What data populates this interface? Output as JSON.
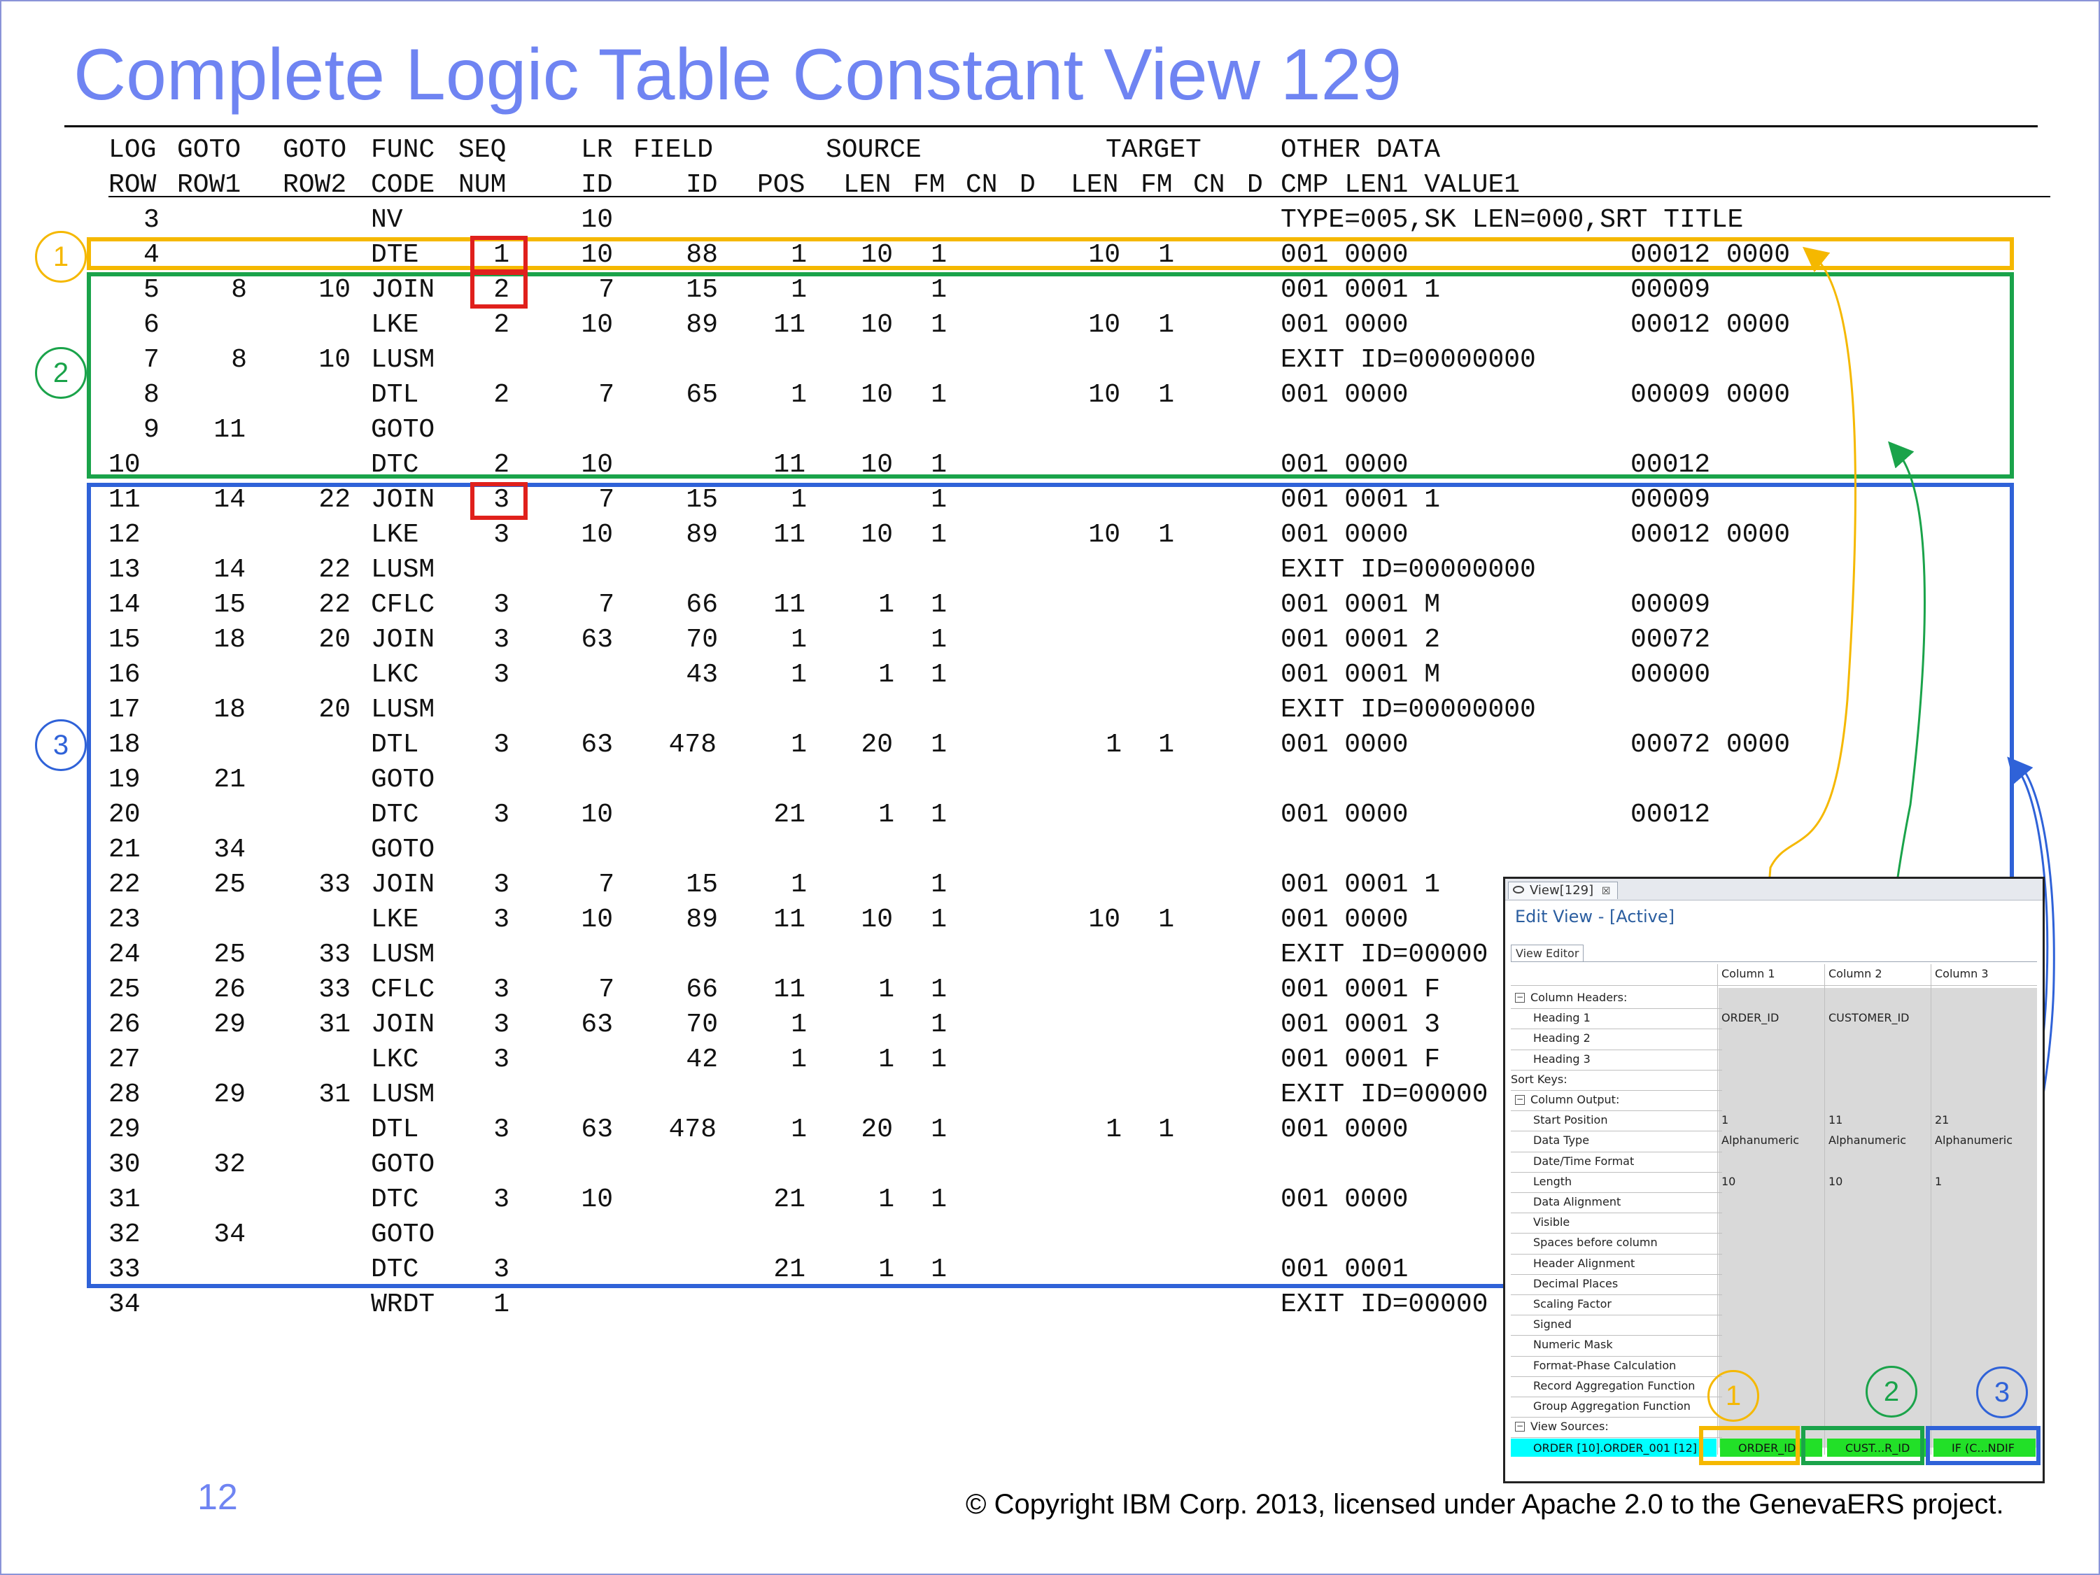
{
  "slide": {
    "title": "Complete Logic Table Constant View 129",
    "page_number": "12",
    "copyright": "© Copyright IBM Corp. 2013, licensed under Apache 2.0 to the GenevaERS project."
  },
  "table": {
    "header_line1": [
      {
        "key": "log",
        "text": "LOG"
      },
      {
        "key": "goto1",
        "text": "GOTO"
      },
      {
        "key": "goto2",
        "text": "GOTO"
      },
      {
        "key": "func",
        "text": "FUNC"
      },
      {
        "key": "seq",
        "text": "SEQ"
      },
      {
        "key": "lr",
        "text": "LR"
      },
      {
        "key": "field",
        "text": "FIELD"
      },
      {
        "key": "source",
        "text": "SOURCE"
      },
      {
        "key": "target",
        "text": "TARGET"
      },
      {
        "key": "other",
        "text": "OTHER DATA"
      }
    ],
    "header_line2": [
      {
        "key": "row",
        "text": "ROW"
      },
      {
        "key": "row1",
        "text": "ROW1"
      },
      {
        "key": "row2",
        "text": "ROW2"
      },
      {
        "key": "code",
        "text": "CODE"
      },
      {
        "key": "num",
        "text": "NUM"
      },
      {
        "key": "lrid",
        "text": "ID"
      },
      {
        "key": "fid",
        "text": "ID"
      },
      {
        "key": "pos",
        "text": "POS"
      },
      {
        "key": "slen",
        "text": "LEN"
      },
      {
        "key": "sfm",
        "text": "FM"
      },
      {
        "key": "scn",
        "text": "CN"
      },
      {
        "key": "sd",
        "text": "D"
      },
      {
        "key": "tlen",
        "text": "LEN"
      },
      {
        "key": "tfm",
        "text": "FM"
      },
      {
        "key": "tcn",
        "text": "CN"
      },
      {
        "key": "td",
        "text": "D"
      },
      {
        "key": "cmp",
        "text": "CMP LEN1 VALUE1"
      }
    ],
    "rows": [
      {
        "row": "3",
        "goto1": "",
        "goto2": "",
        "func": "NV",
        "seq": "",
        "lr": "10",
        "field": "",
        "pos": "",
        "slen": "",
        "sfm": "",
        "tlen": "",
        "tfm": "",
        "other": "TYPE=005,SK LEN=000,SRT TITLE",
        "val": ""
      },
      {
        "row": "4",
        "goto1": "",
        "goto2": "",
        "func": "DTE",
        "seq": "1",
        "lr": "10",
        "field": "88",
        "pos": "1",
        "slen": "10",
        "sfm": "1",
        "tlen": "10",
        "tfm": "1",
        "other": "001 0000",
        "val": "00012 0000"
      },
      {
        "row": "5",
        "goto1": "8",
        "goto2": "10",
        "func": "JOIN",
        "seq": "2",
        "lr": "7",
        "field": "15",
        "pos": "1",
        "slen": "",
        "sfm": "1",
        "tlen": "",
        "tfm": "",
        "other": "001 0001 1",
        "val": "00009"
      },
      {
        "row": "6",
        "goto1": "",
        "goto2": "",
        "func": "LKE",
        "seq": "2",
        "lr": "10",
        "field": "89",
        "pos": "11",
        "slen": "10",
        "sfm": "1",
        "tlen": "10",
        "tfm": "1",
        "other": "001 0000",
        "val": "00012 0000"
      },
      {
        "row": "7",
        "goto1": "8",
        "goto2": "10",
        "func": "LUSM",
        "seq": "",
        "lr": "",
        "field": "",
        "pos": "",
        "slen": "",
        "sfm": "",
        "tlen": "",
        "tfm": "",
        "other": "EXIT ID=00000000",
        "val": ""
      },
      {
        "row": "8",
        "goto1": "",
        "goto2": "",
        "func": "DTL",
        "seq": "2",
        "lr": "7",
        "field": "65",
        "pos": "1",
        "slen": "10",
        "sfm": "1",
        "tlen": "10",
        "tfm": "1",
        "other": "001 0000",
        "val": "00009 0000"
      },
      {
        "row": "9",
        "goto1": "11",
        "goto2": "",
        "func": "GOTO",
        "seq": "",
        "lr": "",
        "field": "",
        "pos": "",
        "slen": "",
        "sfm": "",
        "tlen": "",
        "tfm": "",
        "other": "",
        "val": ""
      },
      {
        "row": "10",
        "goto1": "",
        "goto2": "",
        "func": "DTC",
        "seq": "2",
        "lr": "10",
        "field": "",
        "pos": "11",
        "slen": "10",
        "sfm": "1",
        "tlen": "",
        "tfm": "",
        "other": "001 0000",
        "val": "00012"
      },
      {
        "row": "11",
        "goto1": "14",
        "goto2": "22",
        "func": "JOIN",
        "seq": "3",
        "lr": "7",
        "field": "15",
        "pos": "1",
        "slen": "",
        "sfm": "1",
        "tlen": "",
        "tfm": "",
        "other": "001 0001 1",
        "val": "00009"
      },
      {
        "row": "12",
        "goto1": "",
        "goto2": "",
        "func": "LKE",
        "seq": "3",
        "lr": "10",
        "field": "89",
        "pos": "11",
        "slen": "10",
        "sfm": "1",
        "tlen": "10",
        "tfm": "1",
        "other": "001 0000",
        "val": "00012 0000"
      },
      {
        "row": "13",
        "goto1": "14",
        "goto2": "22",
        "func": "LUSM",
        "seq": "",
        "lr": "",
        "field": "",
        "pos": "",
        "slen": "",
        "sfm": "",
        "tlen": "",
        "tfm": "",
        "other": "EXIT ID=00000000",
        "val": ""
      },
      {
        "row": "14",
        "goto1": "15",
        "goto2": "22",
        "func": "CFLC",
        "seq": "3",
        "lr": "7",
        "field": "66",
        "pos": "11",
        "slen": "1",
        "sfm": "1",
        "tlen": "",
        "tfm": "",
        "other": "001 0001 M",
        "val": "00009"
      },
      {
        "row": "15",
        "goto1": "18",
        "goto2": "20",
        "func": "JOIN",
        "seq": "3",
        "lr": "63",
        "field": "70",
        "pos": "1",
        "slen": "",
        "sfm": "1",
        "tlen": "",
        "tfm": "",
        "other": "001 0001 2",
        "val": "00072"
      },
      {
        "row": "16",
        "goto1": "",
        "goto2": "",
        "func": "LKC",
        "seq": "3",
        "lr": "",
        "field": "43",
        "pos": "1",
        "slen": "1",
        "sfm": "1",
        "tlen": "",
        "tfm": "",
        "other": "001 0001 M",
        "val": "00000"
      },
      {
        "row": "17",
        "goto1": "18",
        "goto2": "20",
        "func": "LUSM",
        "seq": "",
        "lr": "",
        "field": "",
        "pos": "",
        "slen": "",
        "sfm": "",
        "tlen": "",
        "tfm": "",
        "other": "EXIT ID=00000000",
        "val": ""
      },
      {
        "row": "18",
        "goto1": "",
        "goto2": "",
        "func": "DTL",
        "seq": "3",
        "lr": "63",
        "field": "478",
        "pos": "1",
        "slen": "20",
        "sfm": "1",
        "tlen": "1",
        "tfm": "1",
        "other": "001 0000",
        "val": "00072 0000"
      },
      {
        "row": "19",
        "goto1": "21",
        "goto2": "",
        "func": "GOTO",
        "seq": "",
        "lr": "",
        "field": "",
        "pos": "",
        "slen": "",
        "sfm": "",
        "tlen": "",
        "tfm": "",
        "other": "",
        "val": ""
      },
      {
        "row": "20",
        "goto1": "",
        "goto2": "",
        "func": "DTC",
        "seq": "3",
        "lr": "10",
        "field": "",
        "pos": "21",
        "slen": "1",
        "sfm": "1",
        "tlen": "",
        "tfm": "",
        "other": "001 0000",
        "val": "00012"
      },
      {
        "row": "21",
        "goto1": "34",
        "goto2": "",
        "func": "GOTO",
        "seq": "",
        "lr": "",
        "field": "",
        "pos": "",
        "slen": "",
        "sfm": "",
        "tlen": "",
        "tfm": "",
        "other": "",
        "val": ""
      },
      {
        "row": "22",
        "goto1": "25",
        "goto2": "33",
        "func": "JOIN",
        "seq": "3",
        "lr": "7",
        "field": "15",
        "pos": "1",
        "slen": "",
        "sfm": "1",
        "tlen": "",
        "tfm": "",
        "other": "001 0001 1",
        "val": ""
      },
      {
        "row": "23",
        "goto1": "",
        "goto2": "",
        "func": "LKE",
        "seq": "3",
        "lr": "10",
        "field": "89",
        "pos": "11",
        "slen": "10",
        "sfm": "1",
        "tlen": "10",
        "tfm": "1",
        "other": "001 0000",
        "val": ""
      },
      {
        "row": "24",
        "goto1": "25",
        "goto2": "33",
        "func": "LUSM",
        "seq": "",
        "lr": "",
        "field": "",
        "pos": "",
        "slen": "",
        "sfm": "",
        "tlen": "",
        "tfm": "",
        "other": "EXIT ID=00000",
        "val": ""
      },
      {
        "row": "25",
        "goto1": "26",
        "goto2": "33",
        "func": "CFLC",
        "seq": "3",
        "lr": "7",
        "field": "66",
        "pos": "11",
        "slen": "1",
        "sfm": "1",
        "tlen": "",
        "tfm": "",
        "other": "001 0001 F",
        "val": ""
      },
      {
        "row": "26",
        "goto1": "29",
        "goto2": "31",
        "func": "JOIN",
        "seq": "3",
        "lr": "63",
        "field": "70",
        "pos": "1",
        "slen": "",
        "sfm": "1",
        "tlen": "",
        "tfm": "",
        "other": "001 0001 3",
        "val": ""
      },
      {
        "row": "27",
        "goto1": "",
        "goto2": "",
        "func": "LKC",
        "seq": "3",
        "lr": "",
        "field": "42",
        "pos": "1",
        "slen": "1",
        "sfm": "1",
        "tlen": "",
        "tfm": "",
        "other": "001 0001 F",
        "val": ""
      },
      {
        "row": "28",
        "goto1": "29",
        "goto2": "31",
        "func": "LUSM",
        "seq": "",
        "lr": "",
        "field": "",
        "pos": "",
        "slen": "",
        "sfm": "",
        "tlen": "",
        "tfm": "",
        "other": "EXIT ID=00000",
        "val": ""
      },
      {
        "row": "29",
        "goto1": "",
        "goto2": "",
        "func": "DTL",
        "seq": "3",
        "lr": "63",
        "field": "478",
        "pos": "1",
        "slen": "20",
        "sfm": "1",
        "tlen": "1",
        "tfm": "1",
        "other": "001 0000",
        "val": ""
      },
      {
        "row": "30",
        "goto1": "32",
        "goto2": "",
        "func": "GOTO",
        "seq": "",
        "lr": "",
        "field": "",
        "pos": "",
        "slen": "",
        "sfm": "",
        "tlen": "",
        "tfm": "",
        "other": "",
        "val": ""
      },
      {
        "row": "31",
        "goto1": "",
        "goto2": "",
        "func": "DTC",
        "seq": "3",
        "lr": "10",
        "field": "",
        "pos": "21",
        "slen": "1",
        "sfm": "1",
        "tlen": "",
        "tfm": "",
        "other": "001 0000",
        "val": ""
      },
      {
        "row": "32",
        "goto1": "34",
        "goto2": "",
        "func": "GOTO",
        "seq": "",
        "lr": "",
        "field": "",
        "pos": "",
        "slen": "",
        "sfm": "",
        "tlen": "",
        "tfm": "",
        "other": "",
        "val": ""
      },
      {
        "row": "33",
        "goto1": "",
        "goto2": "",
        "func": "DTC",
        "seq": "3",
        "lr": "",
        "field": "",
        "pos": "21",
        "slen": "1",
        "sfm": "1",
        "tlen": "",
        "tfm": "",
        "other": "001 0001",
        "val": ""
      },
      {
        "row": "34",
        "goto1": "",
        "goto2": "",
        "func": "WRDT",
        "seq": "1",
        "lr": "",
        "field": "",
        "pos": "",
        "slen": "",
        "sfm": "",
        "tlen": "",
        "tfm": "",
        "other": "EXIT ID=00000",
        "val": ""
      }
    ]
  },
  "annotations": {
    "markers": [
      "1",
      "2",
      "3"
    ],
    "colors": {
      "group1": "#f5b800",
      "group2": "#1aa34a",
      "group3": "#2f62d8",
      "highlight": "#e0201c"
    }
  },
  "editor": {
    "tab_label": "View[129]",
    "tab_close": "☒",
    "heading": "Edit View - [Active]",
    "subtab": "View Editor",
    "column_headers": [
      "Column 1",
      "Column 2",
      "Column 3"
    ],
    "sections": {
      "column_headers": "Column Headers:",
      "sort_keys": "Sort Keys:",
      "column_output": "Column Output:",
      "view_sources": "View Sources:"
    },
    "heading_rows": [
      {
        "label": "Heading 1",
        "values": [
          "ORDER_ID",
          "CUSTOMER_ID",
          ""
        ]
      },
      {
        "label": "Heading 2",
        "values": [
          "",
          "",
          ""
        ]
      },
      {
        "label": "Heading 3",
        "values": [
          "",
          "",
          ""
        ]
      }
    ],
    "output_rows": [
      {
        "label": "Start Position",
        "values": [
          "1",
          "11",
          "21"
        ]
      },
      {
        "label": "Data Type",
        "values": [
          "Alphanumeric",
          "Alphanumeric",
          "Alphanumeric"
        ]
      },
      {
        "label": "Date/Time Format",
        "values": [
          "",
          "",
          ""
        ]
      },
      {
        "label": "Length",
        "values": [
          "10",
          "10",
          "1"
        ]
      },
      {
        "label": "Data Alignment",
        "values": [
          "",
          "",
          ""
        ]
      },
      {
        "label": "Visible",
        "values": [
          "",
          "",
          ""
        ]
      },
      {
        "label": "Spaces before column",
        "values": [
          "",
          "",
          ""
        ]
      },
      {
        "label": "Header Alignment",
        "values": [
          "",
          "",
          ""
        ]
      },
      {
        "label": "Decimal Places",
        "values": [
          "",
          "",
          ""
        ]
      },
      {
        "label": "Scaling Factor",
        "values": [
          "",
          "",
          ""
        ]
      },
      {
        "label": "Signed",
        "values": [
          "",
          "",
          ""
        ]
      },
      {
        "label": "Numeric Mask",
        "values": [
          "",
          "",
          ""
        ]
      },
      {
        "label": "Format-Phase Calculation",
        "values": [
          "",
          "",
          ""
        ]
      },
      {
        "label": "Record Aggregation Function",
        "values": [
          "",
          "",
          ""
        ]
      },
      {
        "label": "Group Aggregation Function",
        "values": [
          "",
          "",
          ""
        ]
      }
    ],
    "view_source_row": {
      "label": "ORDER [10].ORDER_001 [12]",
      "chips": [
        "ORDER_ID",
        "CUST...R_ID",
        "IF (C...NDIF"
      ]
    }
  }
}
